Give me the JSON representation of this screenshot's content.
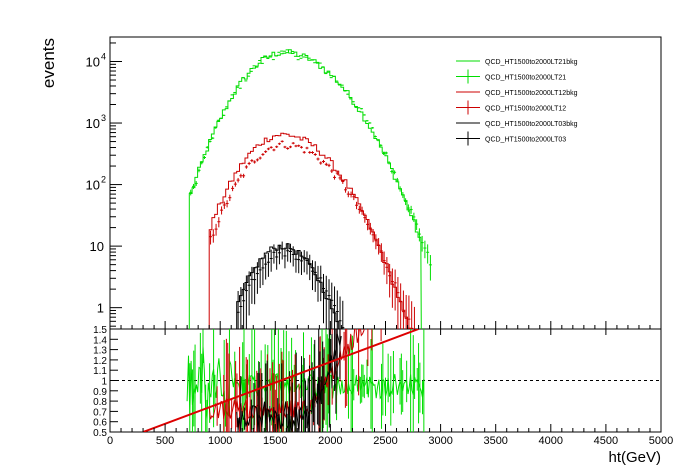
{
  "chart_data": {
    "type": "line",
    "ylabel": "events",
    "xlabel": "ht(GeV)",
    "yscale": "log",
    "ylim": [
      0.45,
      25000
    ],
    "xlim": [
      0,
      5000
    ],
    "xticks": [
      "0",
      "500",
      "1000",
      "1500",
      "2000",
      "2500",
      "3000",
      "3500",
      "4000",
      "4500",
      "5000"
    ],
    "yticks": [
      {
        "value": 1,
        "label": "1"
      },
      {
        "value": 10,
        "label": "10"
      },
      {
        "value": 100,
        "label": "10",
        "exp": "2"
      },
      {
        "value": 1000,
        "label": "10",
        "exp": "3"
      },
      {
        "value": 10000,
        "label": "10",
        "exp": "4"
      }
    ],
    "legend_position": "top-right",
    "legend": [
      {
        "name": "QCD_HT1500to2000LT21bkg",
        "style": "line",
        "color": "#00dd00"
      },
      {
        "name": "QCD_HT1500to2000LT21",
        "style": "errorbar",
        "color": "#00dd00"
      },
      {
        "name": "QCD_HT1500to2000LT12bkg",
        "style": "line",
        "color": "#cc0000"
      },
      {
        "name": "QCD_HT1500to2000LT12",
        "style": "errorbar",
        "color": "#cc0000"
      },
      {
        "name": "QCD_HT1500to2000LT03bkg",
        "style": "line",
        "color": "#000000"
      },
      {
        "name": "QCD_HT1500to2000LT03",
        "style": "errorbar",
        "color": "#000000"
      }
    ],
    "series": [
      {
        "legend_index": 0,
        "color": "#00dd00",
        "kind": "hist",
        "peak_x": 1580,
        "peak_y": 14000,
        "sigma_lo": 260,
        "sigma_hi": 330,
        "x_range": [
          720,
          2800
        ]
      },
      {
        "legend_index": 1,
        "color": "#00dd00",
        "kind": "points",
        "peak_x": 1580,
        "peak_y": 13500,
        "sigma_lo": 260,
        "sigma_hi": 335,
        "x_range": [
          720,
          2900
        ]
      },
      {
        "legend_index": 2,
        "color": "#cc0000",
        "kind": "hist",
        "peak_x": 1570,
        "peak_y": 650,
        "sigma_lo": 250,
        "sigma_hi": 300,
        "x_range": [
          900,
          2700
        ]
      },
      {
        "legend_index": 3,
        "color": "#cc0000",
        "kind": "points",
        "peak_x": 1580,
        "peak_y": 450,
        "sigma_lo": 250,
        "sigma_hi": 310,
        "x_range": [
          900,
          2750
        ]
      },
      {
        "legend_index": 4,
        "color": "#000000",
        "kind": "hist",
        "peak_x": 1560,
        "peak_y": 10,
        "sigma_lo": 190,
        "sigma_hi": 210,
        "x_range": [
          1150,
          2050
        ]
      },
      {
        "legend_index": 5,
        "color": "#000000",
        "kind": "points",
        "peak_x": 1580,
        "peak_y": 8,
        "sigma_lo": 200,
        "sigma_hi": 230,
        "x_range": [
          1150,
          2100
        ]
      }
    ],
    "ratio_panel": {
      "ylim": [
        0.5,
        1.5
      ],
      "yticks": [
        "0.5",
        "0.6",
        "0.7",
        "0.8",
        "0.9",
        "1",
        "1.1",
        "1.2",
        "1.3",
        "1.4",
        "1.5"
      ],
      "reference_line": 1,
      "fit_line": {
        "color": "#dd0000",
        "x0": 300,
        "y0": 0.5,
        "x1": 2800,
        "y1": 1.5
      }
    }
  }
}
